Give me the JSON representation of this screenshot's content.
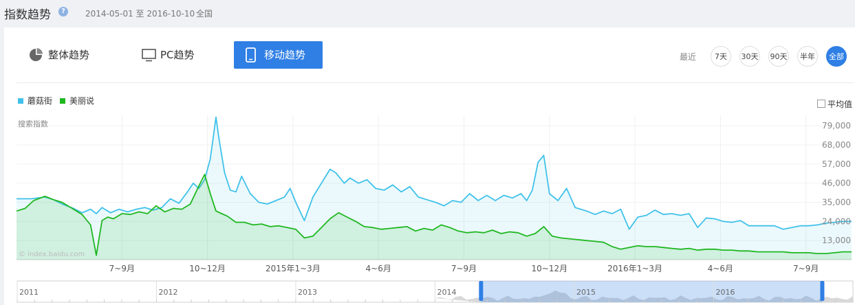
{
  "header": {
    "title": "指数趋势",
    "help_icon": "?",
    "date_range": "2014-05-01 至 2016-10-10",
    "region": "全国"
  },
  "tabs": [
    {
      "label": "整体趋势",
      "icon": "pie-chart-icon",
      "active": false
    },
    {
      "label": "PC趋势",
      "icon": "monitor-icon",
      "active": false
    },
    {
      "label": "移动趋势",
      "icon": "mobile-icon",
      "active": true
    }
  ],
  "range": {
    "label": "最近",
    "buttons": [
      {
        "label": "7天",
        "active": false
      },
      {
        "label": "30天",
        "active": false
      },
      {
        "label": "90天",
        "active": false
      },
      {
        "label": "半年",
        "active": false
      },
      {
        "label": "全部",
        "active": true
      }
    ]
  },
  "average_toggle": "平均值",
  "colors": {
    "accent": "#2f7fe5",
    "series1": "#3fc1e9",
    "series2": "#1fb71f"
  },
  "chart_data": {
    "type": "area",
    "ylabel": "搜索指数",
    "watermark": "© index.baidu.com",
    "y_ticks": [
      "79,000",
      "68,000",
      "57,000",
      "46,000",
      "35,000",
      "24,000",
      "13,000"
    ],
    "y_tick_values": [
      79000,
      68000,
      57000,
      46000,
      35000,
      24000,
      13000
    ],
    "ylim": [
      2000,
      85000
    ],
    "xlim": [
      0,
      29.3
    ],
    "x_ticks": [
      {
        "label": "7~9月",
        "pos": 3.7
      },
      {
        "label": "10~12月",
        "pos": 6.7
      },
      {
        "label": "2015年1~3月",
        "pos": 9.7
      },
      {
        "label": "4~6月",
        "pos": 12.7
      },
      {
        "label": "7~9月",
        "pos": 15.7
      },
      {
        "label": "10~12月",
        "pos": 18.7
      },
      {
        "label": "2016年1~3月",
        "pos": 21.7
      },
      {
        "label": "4~6月",
        "pos": 24.7
      },
      {
        "label": "7~9月",
        "pos": 27.7
      }
    ],
    "x_units": "months since 2014-05-01",
    "series": [
      {
        "name": "蘑菇街",
        "x": [
          0,
          0.5,
          1,
          1.3,
          1.6,
          2,
          2.3,
          2.6,
          2.8,
          3,
          3.3,
          3.6,
          3.9,
          4.2,
          4.5,
          4.8,
          5.1,
          5.4,
          5.7,
          6,
          6.2,
          6.4,
          6.6,
          6.8,
          6.9,
          7.0,
          7.1,
          7.3,
          7.5,
          7.7,
          7.9,
          8.2,
          8.5,
          8.8,
          9.1,
          9.4,
          9.6,
          9.8,
          10.1,
          10.4,
          10.7,
          11,
          11.2,
          11.5,
          11.7,
          12,
          12.3,
          12.6,
          12.9,
          13.2,
          13.5,
          13.8,
          14.1,
          14.4,
          14.7,
          15,
          15.3,
          15.6,
          15.9,
          16.2,
          16.5,
          16.8,
          17.1,
          17.4,
          17.7,
          17.9,
          18.1,
          18.3,
          18.5,
          18.7,
          19,
          19.3,
          19.6,
          19.8,
          20,
          20.3,
          20.6,
          20.9,
          21.2,
          21.5,
          21.8,
          22.1,
          22.4,
          22.7,
          23,
          23.3,
          23.6,
          23.9,
          24.2,
          24.5,
          24.8,
          25.1,
          25.4,
          25.7,
          26,
          26.3,
          26.6,
          26.9,
          27.2,
          27.5,
          27.8,
          28.1,
          28.4,
          28.7,
          29,
          29.3
        ],
        "values": [
          37000,
          37000,
          38000,
          36500,
          34000,
          31500,
          29000,
          31000,
          28500,
          32000,
          29000,
          31000,
          29500,
          31000,
          32000,
          30500,
          32000,
          37000,
          34500,
          41000,
          46000,
          43000,
          48000,
          60000,
          72000,
          84000,
          72000,
          52000,
          42000,
          41000,
          50000,
          40000,
          35000,
          34000,
          36000,
          38000,
          43000,
          35000,
          24500,
          38000,
          46000,
          54000,
          52000,
          46000,
          49000,
          46000,
          48000,
          43000,
          42000,
          45000,
          41000,
          44000,
          38000,
          36500,
          35000,
          33000,
          36000,
          35000,
          40000,
          36000,
          39000,
          36000,
          39000,
          37500,
          40000,
          36000,
          42000,
          58000,
          62000,
          40000,
          36000,
          43000,
          32000,
          31000,
          30000,
          28000,
          30000,
          28500,
          31000,
          19500,
          26500,
          27500,
          30500,
          28000,
          28500,
          27500,
          28500,
          20500,
          26000,
          25500,
          24000,
          23500,
          24500,
          21500,
          21500,
          21500,
          21500,
          19500,
          20500,
          21500,
          21500,
          22000,
          23000,
          23500,
          24000,
          24000
        ]
      },
      {
        "name": "美丽说",
        "x": [
          0,
          0.3,
          0.6,
          1,
          1.3,
          1.6,
          2,
          2.3,
          2.6,
          2.8,
          3,
          3.2,
          3.4,
          3.7,
          4,
          4.3,
          4.6,
          4.9,
          5.2,
          5.5,
          5.8,
          6.1,
          6.4,
          6.6,
          6.8,
          7,
          7.2,
          7.4,
          7.7,
          8,
          8.3,
          8.6,
          8.9,
          9.2,
          9.5,
          9.8,
          10.1,
          10.4,
          10.7,
          11,
          11.3,
          11.6,
          11.9,
          12.2,
          12.5,
          12.8,
          13.1,
          13.4,
          13.7,
          14,
          14.3,
          14.6,
          14.9,
          15.2,
          15.5,
          15.8,
          16.1,
          16.4,
          16.7,
          17,
          17.3,
          17.6,
          17.9,
          18.2,
          18.5,
          18.8,
          19.1,
          19.4,
          19.7,
          20,
          20.3,
          20.6,
          20.9,
          21.2,
          21.5,
          21.8,
          22.1,
          22.4,
          22.7,
          23,
          23.3,
          23.6,
          23.9,
          24.2,
          24.5,
          24.8,
          25.1,
          25.4,
          25.7,
          26,
          26.3,
          26.6,
          26.9,
          27.2,
          27.5,
          27.8,
          28.1,
          28.4,
          28.7,
          29,
          29.3
        ],
        "values": [
          30000,
          31500,
          36000,
          38500,
          36500,
          35000,
          31000,
          28000,
          22000,
          4500,
          24500,
          26500,
          25500,
          28500,
          28000,
          29500,
          28500,
          33000,
          29500,
          31500,
          31000,
          34000,
          44500,
          51000,
          40000,
          30000,
          28500,
          27000,
          23500,
          23500,
          22000,
          22500,
          21000,
          21500,
          20500,
          19500,
          14500,
          15500,
          20500,
          25500,
          29000,
          26500,
          24000,
          21000,
          20500,
          19500,
          20000,
          20500,
          21000,
          18500,
          20000,
          19000,
          22000,
          20500,
          18500,
          17500,
          18000,
          17500,
          19000,
          17000,
          18000,
          17500,
          15500,
          17000,
          21000,
          15500,
          14500,
          14000,
          13500,
          13000,
          12500,
          12000,
          9500,
          8000,
          9000,
          10000,
          9500,
          9500,
          9000,
          8500,
          8000,
          8500,
          7500,
          8000,
          8000,
          7500,
          7500,
          7000,
          7000,
          6500,
          6500,
          6500,
          6500,
          6000,
          6000,
          6000,
          5500,
          5500,
          6000,
          6500,
          6500
        ]
      }
    ],
    "navigator": {
      "years": [
        {
          "label": "2011",
          "pos": 0
        },
        {
          "label": "2012",
          "pos": 1
        },
        {
          "label": "2013",
          "pos": 2
        },
        {
          "label": "2014",
          "pos": 3
        },
        {
          "label": "2015",
          "pos": 4
        },
        {
          "label": "2016",
          "pos": 5
        }
      ],
      "selected": [
        3.33,
        5.78
      ]
    }
  }
}
